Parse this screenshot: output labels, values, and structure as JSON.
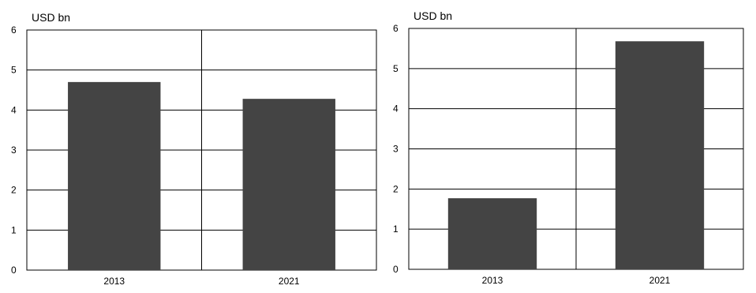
{
  "colors": {
    "bar": "#444444",
    "grid": "#000000",
    "background": "#ffffff"
  },
  "chart_data": [
    {
      "type": "bar",
      "unit_label": "USD bn",
      "categories": [
        "2013",
        "2021"
      ],
      "values": [
        4.7,
        4.28
      ],
      "ylim": [
        0,
        6
      ],
      "yticks": [
        "0",
        "1",
        "2",
        "3",
        "4",
        "5",
        "6"
      ],
      "grid": true,
      "legend": "none"
    },
    {
      "type": "bar",
      "unit_label": "USD bn",
      "categories": [
        "2013",
        "2021"
      ],
      "values": [
        1.77,
        5.68
      ],
      "ylim": [
        0,
        6
      ],
      "yticks": [
        "0",
        "1",
        "2",
        "3",
        "4",
        "5",
        "6"
      ],
      "grid": true,
      "legend": "none"
    }
  ]
}
